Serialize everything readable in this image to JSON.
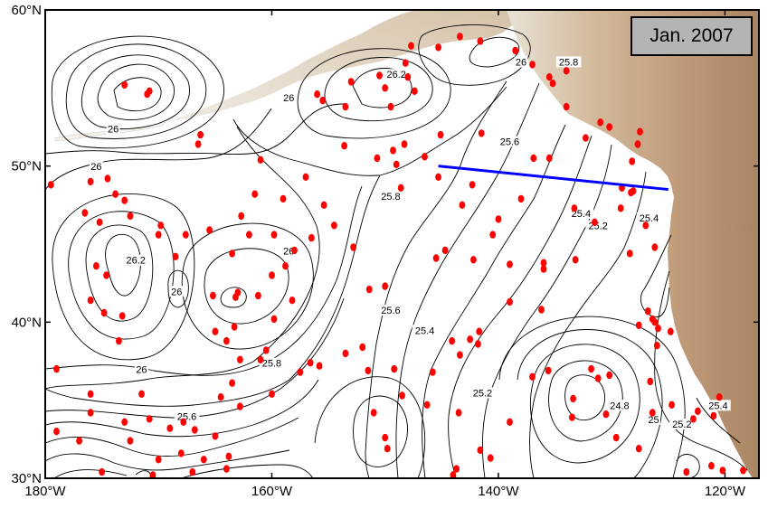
{
  "map": {
    "date_label": "Jan. 2007",
    "lon_range": [
      -180,
      -117
    ],
    "lat_range": [
      30,
      60
    ],
    "lat_ticks": [
      {
        "value": 60,
        "label": "60°N"
      },
      {
        "value": 50,
        "label": "50°N"
      },
      {
        "value": 40,
        "label": "40°N"
      },
      {
        "value": 30,
        "label": "30°N"
      }
    ],
    "lon_ticks": [
      {
        "value": -180,
        "label": "180°W"
      },
      {
        "value": -160,
        "label": "160°W"
      },
      {
        "value": -140,
        "label": "140°W"
      },
      {
        "value": -120,
        "label": "120°W"
      }
    ],
    "contour_labels": [
      {
        "text": "26.2",
        "lon": -149,
        "lat": 55.7
      },
      {
        "text": "26",
        "lon": -158.5,
        "lat": 54.2
      },
      {
        "text": "26",
        "lon": -138,
        "lat": 56.5
      },
      {
        "text": "25.8",
        "lon": -133.8,
        "lat": 56.5
      },
      {
        "text": "26",
        "lon": -174,
        "lat": 52.2
      },
      {
        "text": "26",
        "lon": -175.5,
        "lat": 49.8
      },
      {
        "text": "25.6",
        "lon": -139,
        "lat": 51.4
      },
      {
        "text": "25.8",
        "lon": -149.5,
        "lat": 47.9
      },
      {
        "text": "26",
        "lon": -158.5,
        "lat": 44.4
      },
      {
        "text": "26.2",
        "lon": -172,
        "lat": 43.8
      },
      {
        "text": "26",
        "lon": -168.4,
        "lat": 41.8
      },
      {
        "text": "25.6",
        "lon": -149.5,
        "lat": 40.6
      },
      {
        "text": "25.4",
        "lon": -146.5,
        "lat": 39.3
      },
      {
        "text": "25.4",
        "lon": -132.7,
        "lat": 46.8
      },
      {
        "text": "25.2",
        "lon": -131.2,
        "lat": 46.0
      },
      {
        "text": "25.4",
        "lon": -126.7,
        "lat": 46.5
      },
      {
        "text": "25.8",
        "lon": -160,
        "lat": 37.2
      },
      {
        "text": "26",
        "lon": -171.5,
        "lat": 36.8
      },
      {
        "text": "25.2",
        "lon": -141.4,
        "lat": 35.3
      },
      {
        "text": "24.8",
        "lon": -129.3,
        "lat": 34.5
      },
      {
        "text": "25",
        "lon": -126.3,
        "lat": 33.6
      },
      {
        "text": "25.6",
        "lon": -167.5,
        "lat": 33.8
      },
      {
        "text": "25.4",
        "lon": -120.6,
        "lat": 34.5
      },
      {
        "text": "25.2",
        "lon": -123.8,
        "lat": 33.3
      }
    ],
    "section_line": {
      "start": [
        -145.3,
        50.0
      ],
      "end": [
        -125.0,
        48.5
      ],
      "color": "#0000ff"
    },
    "float_color": "#ff0000",
    "land_colors": [
      "#e9e2d5",
      "#d6bfa4",
      "#c19d7c",
      "#a98563"
    ]
  }
}
